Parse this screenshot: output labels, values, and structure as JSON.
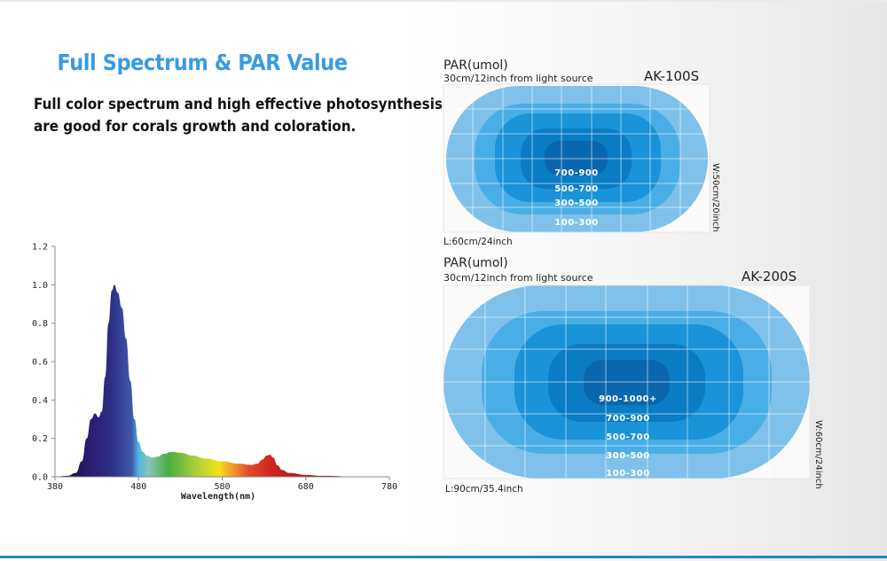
{
  "header": {
    "title": "Full Spectrum & PAR Value",
    "subtitle_lines": [
      "Full color spectrum and high effective photosynthesis",
      "are good for corals growth and coloration."
    ]
  },
  "chart_data": {
    "type": "area",
    "title": "",
    "xlabel": "Wavelength(nm)",
    "ylabel": "",
    "xlim": [
      380,
      780
    ],
    "ylim": [
      0,
      1.2
    ],
    "x_ticks": [
      "380",
      "480",
      "580",
      "680",
      "780"
    ],
    "y_ticks": [
      "0.0",
      "0.2",
      "0.4",
      "0.6",
      "0.8",
      "1.0",
      "1.2"
    ],
    "grid": false,
    "fill": "visible-spectrum gradient",
    "x": [
      380,
      395,
      405,
      412,
      418,
      423,
      428,
      432,
      436,
      440,
      444,
      448,
      451,
      455,
      460,
      465,
      470,
      475,
      480,
      485,
      490,
      497,
      503,
      510,
      520,
      530,
      545,
      560,
      580,
      600,
      615,
      622,
      628,
      633,
      637,
      641,
      646,
      652,
      660,
      680,
      700,
      740,
      780
    ],
    "y": [
      0,
      0.005,
      0.02,
      0.08,
      0.2,
      0.3,
      0.33,
      0.31,
      0.34,
      0.52,
      0.8,
      0.97,
      1.0,
      0.96,
      0.88,
      0.72,
      0.5,
      0.3,
      0.18,
      0.13,
      0.11,
      0.1,
      0.105,
      0.12,
      0.13,
      0.125,
      0.11,
      0.095,
      0.08,
      0.068,
      0.062,
      0.068,
      0.09,
      0.11,
      0.115,
      0.1,
      0.06,
      0.035,
      0.02,
      0.01,
      0.005,
      0.002,
      0
    ]
  },
  "par_diagrams": [
    {
      "heading": "PAR(umol)",
      "distance": "30cm/12inch from light source",
      "model": "AK-100S",
      "length_label": "L:60cm/24inch",
      "width_label": "W:50cm/20inch",
      "zones": [
        "700-900",
        "500-700",
        "300-500",
        "100-300"
      ]
    },
    {
      "heading": "PAR(umol)",
      "distance": "30cm/12inch from light source",
      "model": "AK-200S",
      "length_label": "L:90cm/35.4inch",
      "width_label": "W:60cm/24inch",
      "zones": [
        "900-1000+",
        "700-900",
        "500-700",
        "300-500",
        "100-300"
      ]
    }
  ],
  "colors": {
    "title": "#3a9be0",
    "zone_1": "#7fc1ea",
    "zone_2": "#4aaee6",
    "zone_3": "#1a93d8",
    "zone_4": "#0a7cc4",
    "zone_5": "#0a67ad",
    "bottom_line": "#2a86b8"
  }
}
